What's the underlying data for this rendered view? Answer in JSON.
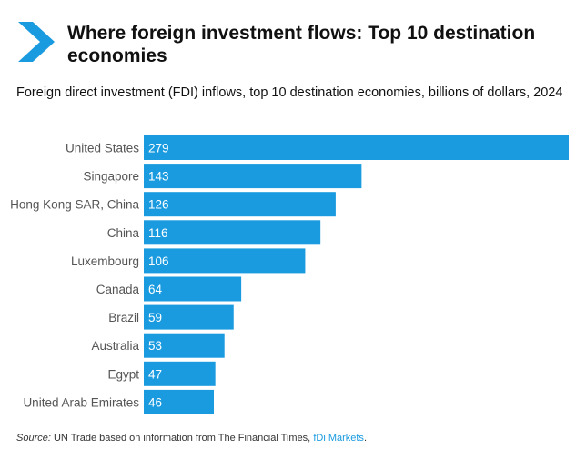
{
  "header": {
    "title": "Where foreign investment flows: Top 10 destination economies",
    "subtitle": "Foreign direct investment (FDI) inflows, top 10 destination economies, billions of dollars, 2024"
  },
  "colors": {
    "accent": "#1a9be0",
    "bar": "#1a9be0",
    "bar_label": "#ffffff",
    "category_label": "#555555"
  },
  "icons": {
    "header_marker": "chevron-right-icon"
  },
  "chart_data": {
    "type": "bar",
    "orientation": "horizontal",
    "title": "Foreign direct investment (FDI) inflows, top 10 destination economies, billions of dollars, 2024",
    "categories": [
      "United States",
      "Singapore",
      "Hong Kong SAR, China",
      "China",
      "Luxembourg",
      "Canada",
      "Brazil",
      "Australia",
      "Egypt",
      "United Arab Emirates"
    ],
    "values": [
      279,
      143,
      126,
      116,
      106,
      64,
      59,
      53,
      47,
      46
    ],
    "xlim": [
      0,
      279
    ],
    "grid": false,
    "legend": "none",
    "data_labels": "inside-left"
  },
  "source": {
    "label": "Source:",
    "text": "UN Trade based on information from The Financial Times,",
    "link_text": "fDi Markets",
    "end": "."
  }
}
